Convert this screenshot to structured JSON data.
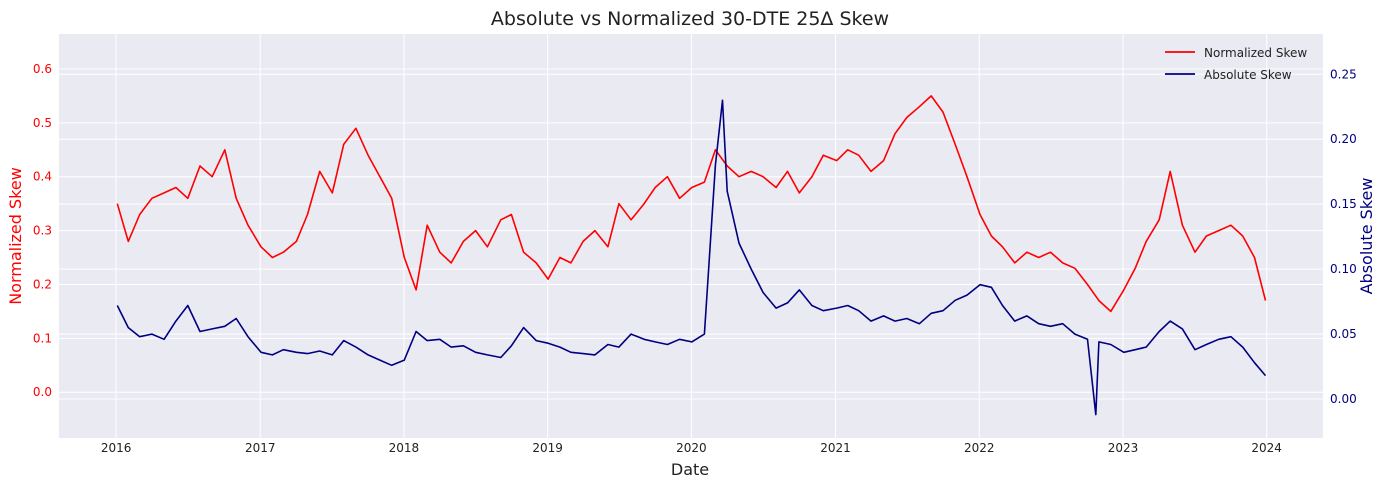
{
  "chart_data": {
    "type": "line",
    "title": "Absolute vs Normalized 30-DTE 25Δ Skew",
    "xlabel": "Date",
    "ylabel_left": "Normalized Skew",
    "ylabel_right": "Absolute Skew",
    "xlim": [
      "2015-08-09",
      "2024-05-23"
    ],
    "ylim_left": [
      -0.085,
      0.665
    ],
    "ylim_right": [
      -0.03,
      0.281
    ],
    "x_ticks": [
      "2016",
      "2017",
      "2018",
      "2019",
      "2020",
      "2021",
      "2022",
      "2023",
      "2024"
    ],
    "y_ticks_left": [
      "0.0",
      "0.1",
      "0.2",
      "0.3",
      "0.4",
      "0.5",
      "0.6"
    ],
    "y_ticks_right": [
      "0.00",
      "0.05",
      "0.10",
      "0.15",
      "0.20",
      "0.25"
    ],
    "grid": true,
    "legend_position": "top-right",
    "colors": {
      "normalized": "#ff0000",
      "absolute": "#000080",
      "background": "#eaeaf2",
      "grid": "#ffffff"
    },
    "series": [
      {
        "name": "Normalized Skew",
        "axis": "left",
        "x": [
          "2016-01-04",
          "2016-02-01",
          "2016-03-01",
          "2016-04-01",
          "2016-05-02",
          "2016-06-01",
          "2016-07-01",
          "2016-08-01",
          "2016-09-01",
          "2016-10-03",
          "2016-11-01",
          "2016-12-01",
          "2017-01-03",
          "2017-02-01",
          "2017-03-01",
          "2017-04-03",
          "2017-05-01",
          "2017-06-01",
          "2017-07-03",
          "2017-08-01",
          "2017-09-01",
          "2017-10-02",
          "2017-11-01",
          "2017-12-01",
          "2018-01-02",
          "2018-02-01",
          "2018-03-01",
          "2018-04-02",
          "2018-05-01",
          "2018-06-01",
          "2018-07-02",
          "2018-08-01",
          "2018-09-04",
          "2018-10-01",
          "2018-11-01",
          "2018-12-03",
          "2019-01-02",
          "2019-02-01",
          "2019-03-01",
          "2019-04-01",
          "2019-05-01",
          "2019-06-03",
          "2019-07-01",
          "2019-08-01",
          "2019-09-03",
          "2019-10-01",
          "2019-11-01",
          "2019-12-02",
          "2020-01-02",
          "2020-02-03",
          "2020-03-02",
          "2020-04-01",
          "2020-05-01",
          "2020-06-01",
          "2020-07-01",
          "2020-08-03",
          "2020-09-01",
          "2020-10-01",
          "2020-11-02",
          "2020-12-01",
          "2021-01-04",
          "2021-02-01",
          "2021-03-01",
          "2021-04-01",
          "2021-05-03",
          "2021-06-01",
          "2021-07-01",
          "2021-08-02",
          "2021-09-01",
          "2021-10-01",
          "2021-11-01",
          "2021-12-01",
          "2022-01-03",
          "2022-02-01",
          "2022-03-01",
          "2022-04-01",
          "2022-05-02",
          "2022-06-01",
          "2022-07-01",
          "2022-08-01",
          "2022-09-01",
          "2022-10-03",
          "2022-11-01",
          "2022-12-01",
          "2023-01-03",
          "2023-02-01",
          "2023-03-01",
          "2023-04-03",
          "2023-05-01",
          "2023-06-01",
          "2023-07-03",
          "2023-08-01",
          "2023-09-01",
          "2023-10-02",
          "2023-11-01",
          "2023-12-01",
          "2023-12-29"
        ],
        "values": [
          0.35,
          0.28,
          0.33,
          0.36,
          0.37,
          0.38,
          0.36,
          0.42,
          0.4,
          0.45,
          0.36,
          0.31,
          0.27,
          0.25,
          0.26,
          0.28,
          0.33,
          0.41,
          0.37,
          0.46,
          0.49,
          0.44,
          0.4,
          0.36,
          0.25,
          0.19,
          0.31,
          0.26,
          0.24,
          0.28,
          0.3,
          0.27,
          0.32,
          0.33,
          0.26,
          0.24,
          0.21,
          0.25,
          0.24,
          0.28,
          0.3,
          0.27,
          0.35,
          0.32,
          0.35,
          0.38,
          0.4,
          0.36,
          0.38,
          0.39,
          0.45,
          0.42,
          0.4,
          0.41,
          0.4,
          0.38,
          0.41,
          0.37,
          0.4,
          0.44,
          0.43,
          0.45,
          0.44,
          0.41,
          0.43,
          0.48,
          0.51,
          0.53,
          0.55,
          0.52,
          0.46,
          0.4,
          0.33,
          0.29,
          0.27,
          0.24,
          0.26,
          0.25,
          0.26,
          0.24,
          0.23,
          0.2,
          0.17,
          0.15,
          0.19,
          0.23,
          0.28,
          0.32,
          0.41,
          0.31,
          0.26,
          0.29,
          0.3,
          0.31,
          0.29,
          0.25,
          0.17
        ]
      },
      {
        "name": "Absolute Skew",
        "axis": "right",
        "x": [
          "2016-01-04",
          "2016-02-01",
          "2016-03-01",
          "2016-04-01",
          "2016-05-02",
          "2016-06-01",
          "2016-07-01",
          "2016-08-01",
          "2016-09-01",
          "2016-10-03",
          "2016-11-01",
          "2016-12-01",
          "2017-01-03",
          "2017-02-01",
          "2017-03-01",
          "2017-04-03",
          "2017-05-01",
          "2017-06-01",
          "2017-07-03",
          "2017-08-01",
          "2017-09-01",
          "2017-10-02",
          "2017-11-01",
          "2017-12-01",
          "2018-01-02",
          "2018-02-01",
          "2018-03-01",
          "2018-04-02",
          "2018-05-01",
          "2018-06-01",
          "2018-07-02",
          "2018-08-01",
          "2018-09-04",
          "2018-10-01",
          "2018-11-01",
          "2018-12-03",
          "2019-01-02",
          "2019-02-01",
          "2019-03-01",
          "2019-04-01",
          "2019-05-01",
          "2019-06-03",
          "2019-07-01",
          "2019-08-01",
          "2019-09-03",
          "2019-10-01",
          "2019-11-01",
          "2019-12-02",
          "2020-01-02",
          "2020-02-03",
          "2020-03-02",
          "2020-03-20",
          "2020-04-01",
          "2020-05-01",
          "2020-06-01",
          "2020-07-01",
          "2020-08-03",
          "2020-09-01",
          "2020-10-01",
          "2020-11-02",
          "2020-12-01",
          "2021-01-04",
          "2021-02-01",
          "2021-03-01",
          "2021-04-01",
          "2021-05-03",
          "2021-06-01",
          "2021-07-01",
          "2021-08-02",
          "2021-09-01",
          "2021-10-01",
          "2021-11-01",
          "2021-12-01",
          "2022-01-03",
          "2022-02-01",
          "2022-03-01",
          "2022-04-01",
          "2022-05-02",
          "2022-06-01",
          "2022-07-01",
          "2022-08-01",
          "2022-09-01",
          "2022-10-03",
          "2022-10-24",
          "2022-11-01",
          "2022-12-01",
          "2023-01-03",
          "2023-02-01",
          "2023-03-01",
          "2023-04-03",
          "2023-05-01",
          "2023-06-01",
          "2023-07-03",
          "2023-08-01",
          "2023-09-01",
          "2023-10-02",
          "2023-11-01",
          "2023-12-01",
          "2023-12-29"
        ],
        "values": [
          0.072,
          0.055,
          0.048,
          0.05,
          0.046,
          0.06,
          0.072,
          0.052,
          0.054,
          0.056,
          0.062,
          0.048,
          0.036,
          0.034,
          0.038,
          0.036,
          0.035,
          0.037,
          0.034,
          0.045,
          0.04,
          0.034,
          0.03,
          0.026,
          0.03,
          0.052,
          0.045,
          0.046,
          0.04,
          0.041,
          0.036,
          0.034,
          0.032,
          0.041,
          0.055,
          0.045,
          0.043,
          0.04,
          0.036,
          0.035,
          0.034,
          0.042,
          0.04,
          0.05,
          0.046,
          0.044,
          0.042,
          0.046,
          0.044,
          0.05,
          0.18,
          0.23,
          0.16,
          0.12,
          0.1,
          0.082,
          0.07,
          0.074,
          0.084,
          0.072,
          0.068,
          0.07,
          0.072,
          0.068,
          0.06,
          0.064,
          0.06,
          0.062,
          0.058,
          0.066,
          0.068,
          0.076,
          0.08,
          0.088,
          0.086,
          0.072,
          0.06,
          0.064,
          0.058,
          0.056,
          0.058,
          0.05,
          0.046,
          -0.012,
          0.044,
          0.042,
          0.036,
          0.038,
          0.04,
          0.052,
          0.06,
          0.054,
          0.038,
          0.042,
          0.046,
          0.048,
          0.04,
          0.028,
          0.018
        ]
      }
    ]
  }
}
